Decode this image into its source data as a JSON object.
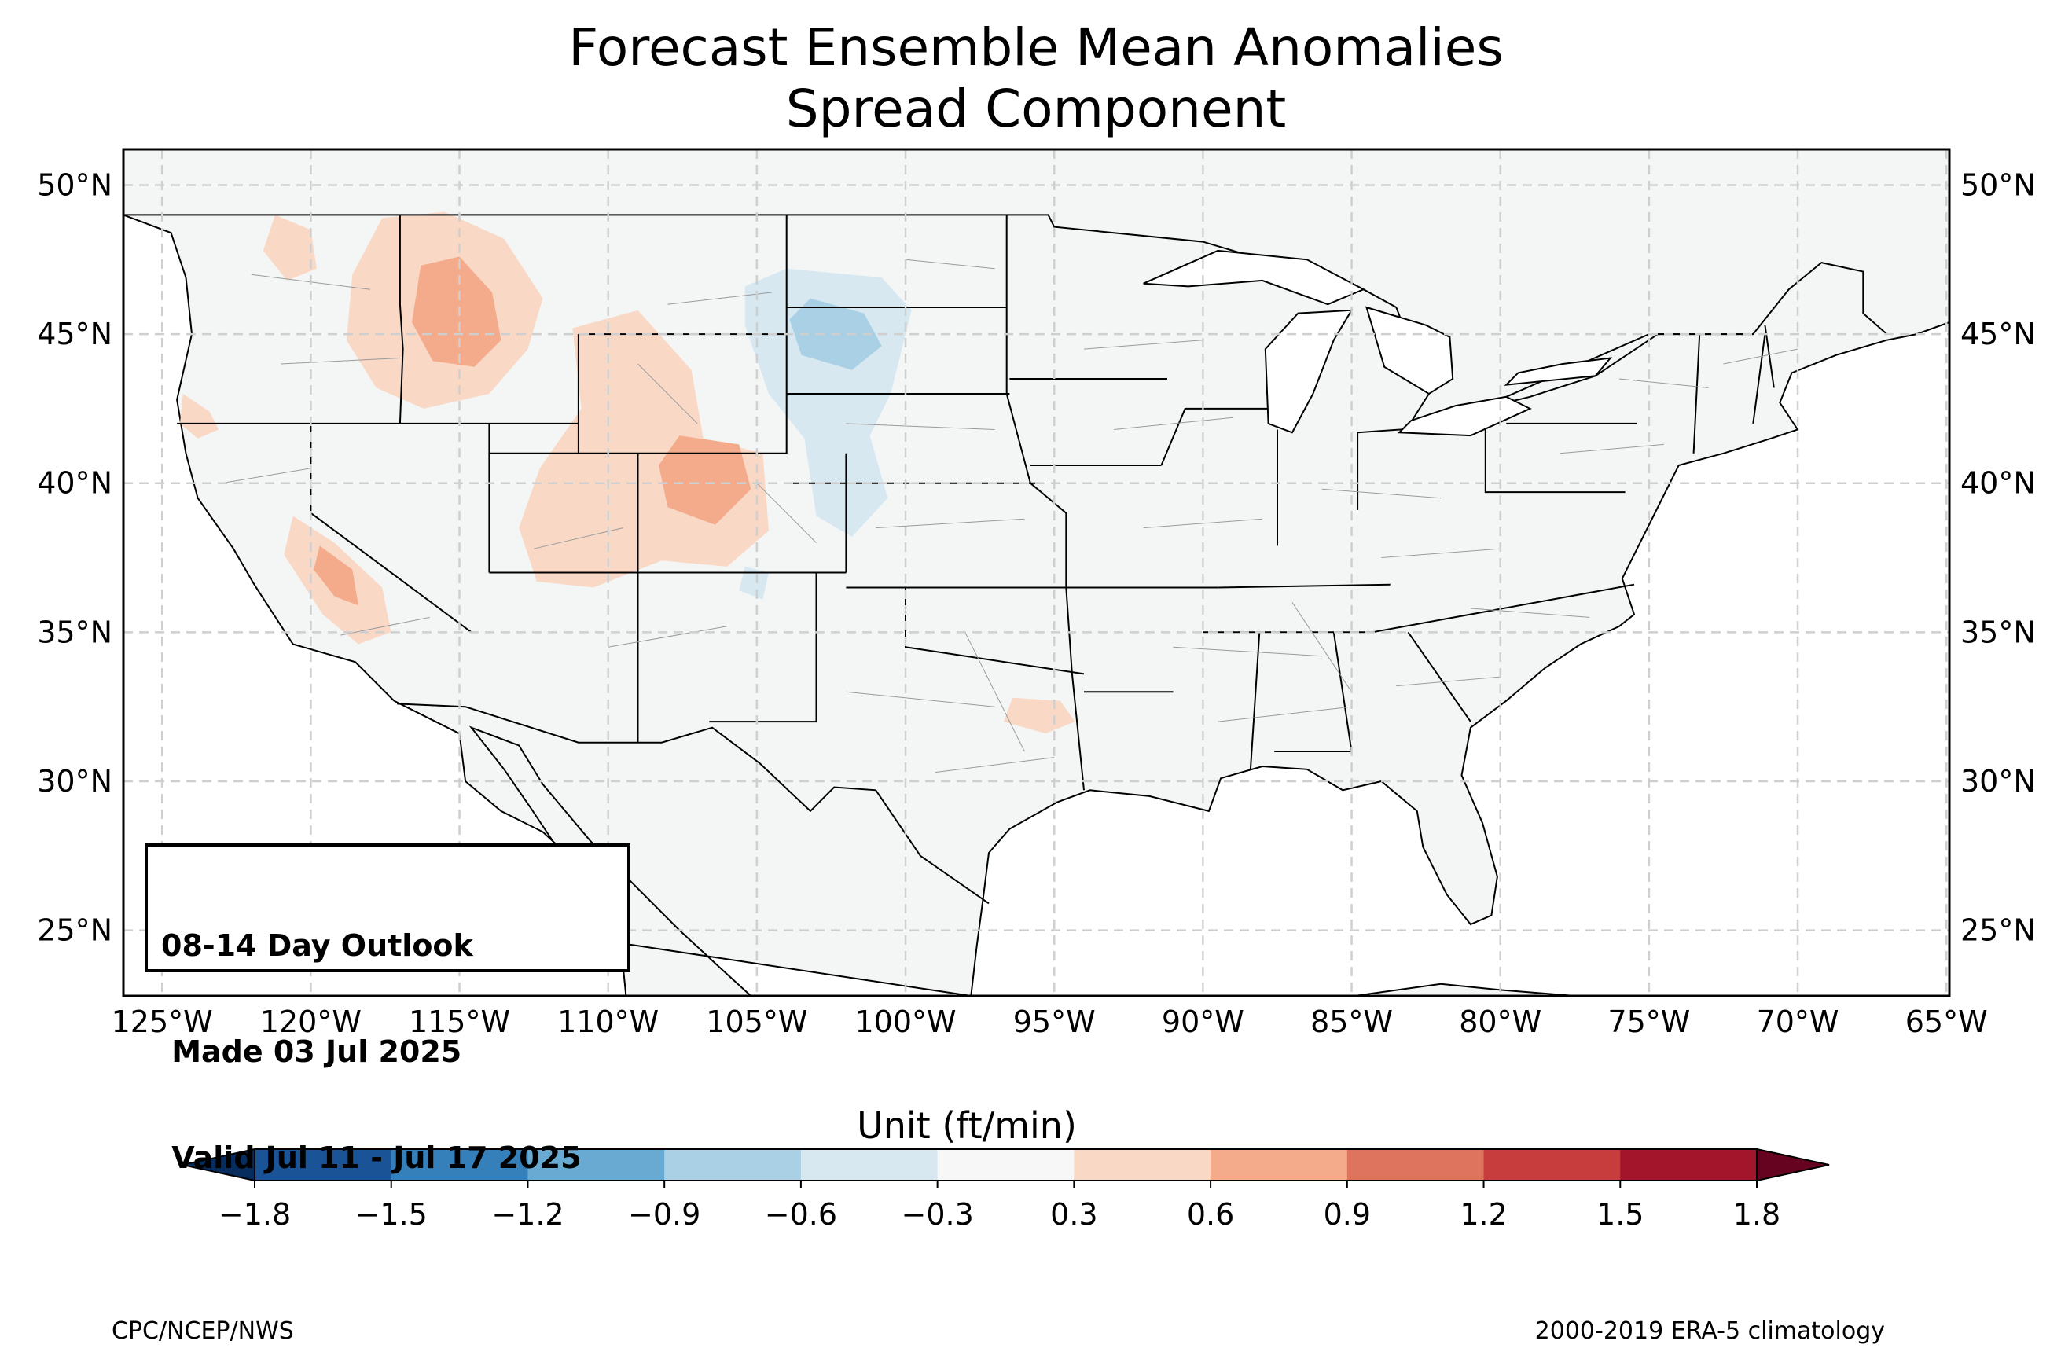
{
  "title": {
    "line1": "Forecast Ensemble Mean Anomalies",
    "line2": "Spread Component"
  },
  "outlook": {
    "line1": "08-14 Day Outlook",
    "line2": " Made 03 Jul 2025",
    "line3": " Valid Jul 11 - Jul 17 2025"
  },
  "map": {
    "extent": {
      "lon": [
        -126.3,
        -64.9
      ],
      "lat": [
        22.8,
        51.2
      ]
    },
    "lat_ticks": [
      {
        "lat": 50,
        "label": "50°N"
      },
      {
        "lat": 45,
        "label": "45°N"
      },
      {
        "lat": 40,
        "label": "40°N"
      },
      {
        "lat": 35,
        "label": "35°N"
      },
      {
        "lat": 30,
        "label": "30°N"
      },
      {
        "lat": 25,
        "label": "25°N"
      }
    ],
    "lon_ticks": [
      {
        "lon": -125,
        "label": "125°W"
      },
      {
        "lon": -120,
        "label": "120°W"
      },
      {
        "lon": -115,
        "label": "115°W"
      },
      {
        "lon": -110,
        "label": "110°W"
      },
      {
        "lon": -105,
        "label": "105°W"
      },
      {
        "lon": -100,
        "label": "100°W"
      },
      {
        "lon": -95,
        "label": "95°W"
      },
      {
        "lon": -90,
        "label": "90°W"
      },
      {
        "lon": -85,
        "label": "85°W"
      },
      {
        "lon": -80,
        "label": "80°W"
      },
      {
        "lon": -75,
        "label": "75°W"
      },
      {
        "lon": -70,
        "label": "70°W"
      },
      {
        "lon": -65,
        "label": "65°W"
      }
    ],
    "land_color": "#f4f6f6",
    "ocean_color": "#ffffff",
    "grid": true,
    "anomaly_regions": [
      {
        "name": "northern-rockies",
        "level": 0.45,
        "lonlat": [
          [
            -117.6,
            48.9
          ],
          [
            -115.5,
            49.1
          ],
          [
            -113.5,
            48.2
          ],
          [
            -112.2,
            46.2
          ],
          [
            -112.7,
            44.5
          ],
          [
            -114.0,
            43.0
          ],
          [
            -116.2,
            42.5
          ],
          [
            -117.8,
            43.2
          ],
          [
            -118.8,
            44.8
          ],
          [
            -118.6,
            47.0
          ]
        ]
      },
      {
        "name": "idaho-core",
        "level": 0.75,
        "lonlat": [
          [
            -116.3,
            47.3
          ],
          [
            -115.0,
            47.6
          ],
          [
            -113.9,
            46.4
          ],
          [
            -113.6,
            44.8
          ],
          [
            -114.5,
            43.9
          ],
          [
            -115.9,
            44.1
          ],
          [
            -116.6,
            45.4
          ]
        ]
      },
      {
        "name": "cascades-east",
        "level": 0.45,
        "lonlat": [
          [
            -121.2,
            49.0
          ],
          [
            -120.0,
            48.5
          ],
          [
            -119.8,
            47.2
          ],
          [
            -120.8,
            46.8
          ],
          [
            -121.6,
            47.8
          ]
        ]
      },
      {
        "name": "wyoming-utah",
        "level": 0.45,
        "lonlat": [
          [
            -111.2,
            45.2
          ],
          [
            -109.0,
            45.8
          ],
          [
            -107.2,
            43.8
          ],
          [
            -106.8,
            41.5
          ],
          [
            -104.8,
            41.0
          ],
          [
            -104.6,
            38.4
          ],
          [
            -106.0,
            37.2
          ],
          [
            -108.2,
            37.4
          ],
          [
            -110.5,
            36.5
          ],
          [
            -112.4,
            36.7
          ],
          [
            -113.0,
            38.5
          ],
          [
            -112.3,
            40.5
          ],
          [
            -110.9,
            42.5
          ]
        ]
      },
      {
        "name": "colorado-core",
        "level": 0.75,
        "lonlat": [
          [
            -107.6,
            41.6
          ],
          [
            -105.6,
            41.3
          ],
          [
            -105.2,
            39.8
          ],
          [
            -106.4,
            38.6
          ],
          [
            -108.0,
            39.2
          ],
          [
            -108.3,
            40.6
          ]
        ]
      },
      {
        "name": "sierra-nevada",
        "level": 0.45,
        "lonlat": [
          [
            -120.6,
            38.9
          ],
          [
            -119.2,
            38.0
          ],
          [
            -117.6,
            36.5
          ],
          [
            -117.3,
            35.0
          ],
          [
            -118.4,
            34.6
          ],
          [
            -119.6,
            35.6
          ],
          [
            -120.9,
            37.6
          ]
        ]
      },
      {
        "name": "sierra-core",
        "level": 0.75,
        "lonlat": [
          [
            -119.7,
            37.9
          ],
          [
            -118.6,
            37.1
          ],
          [
            -118.4,
            35.9
          ],
          [
            -119.2,
            36.2
          ],
          [
            -119.9,
            37.1
          ]
        ]
      },
      {
        "name": "oregon-coast",
        "level": 0.4,
        "lonlat": [
          [
            -124.3,
            43.0
          ],
          [
            -123.4,
            42.4
          ],
          [
            -123.1,
            41.8
          ],
          [
            -123.8,
            41.5
          ],
          [
            -124.4,
            42.0
          ]
        ]
      },
      {
        "name": "east-texas",
        "level": 0.4,
        "lonlat": [
          [
            -96.4,
            32.8
          ],
          [
            -94.8,
            32.7
          ],
          [
            -94.3,
            32.0
          ],
          [
            -95.3,
            31.6
          ],
          [
            -96.7,
            32.0
          ]
        ]
      },
      {
        "name": "northern-plains",
        "level": -0.45,
        "lonlat": [
          [
            -104.0,
            47.2
          ],
          [
            -100.8,
            46.9
          ],
          [
            -99.8,
            45.8
          ],
          [
            -100.5,
            43.0
          ],
          [
            -101.2,
            41.6
          ],
          [
            -100.6,
            39.5
          ],
          [
            -101.8,
            38.2
          ],
          [
            -103.0,
            38.9
          ],
          [
            -103.4,
            41.5
          ],
          [
            -104.6,
            43.0
          ],
          [
            -105.4,
            45.3
          ],
          [
            -105.4,
            46.6
          ]
        ]
      },
      {
        "name": "dakotas-core",
        "level": -0.75,
        "lonlat": [
          [
            -103.2,
            46.2
          ],
          [
            -101.4,
            45.7
          ],
          [
            -100.8,
            44.6
          ],
          [
            -101.8,
            43.8
          ],
          [
            -103.5,
            44.3
          ],
          [
            -103.9,
            45.5
          ]
        ]
      },
      {
        "name": "nm-patches",
        "level": -0.35,
        "lonlat": [
          [
            -105.4,
            37.2
          ],
          [
            -104.6,
            37.0
          ],
          [
            -104.8,
            36.1
          ],
          [
            -105.6,
            36.4
          ]
        ]
      }
    ]
  },
  "colorbar": {
    "title": "Unit (ft/min)",
    "tick_labels": [
      "−1.8",
      "−1.5",
      "−1.2",
      "−0.9",
      "−0.6",
      "−0.3",
      "0.3",
      "0.6",
      "0.9",
      "1.2",
      "1.5",
      "1.8"
    ],
    "colors": [
      "#1a5497",
      "#3580bb",
      "#68aad2",
      "#a9d0e4",
      "#d7e8f1",
      "#f7f7f7",
      "#f9d8c6",
      "#f3ab8b",
      "#de745d",
      "#c73c3c",
      "#a2152b"
    ],
    "under_color": "#072d5f",
    "over_color": "#660320"
  },
  "footer": {
    "left": "CPC/NCEP/NWS",
    "right": "2000-2019 ERA-5 climatology"
  }
}
